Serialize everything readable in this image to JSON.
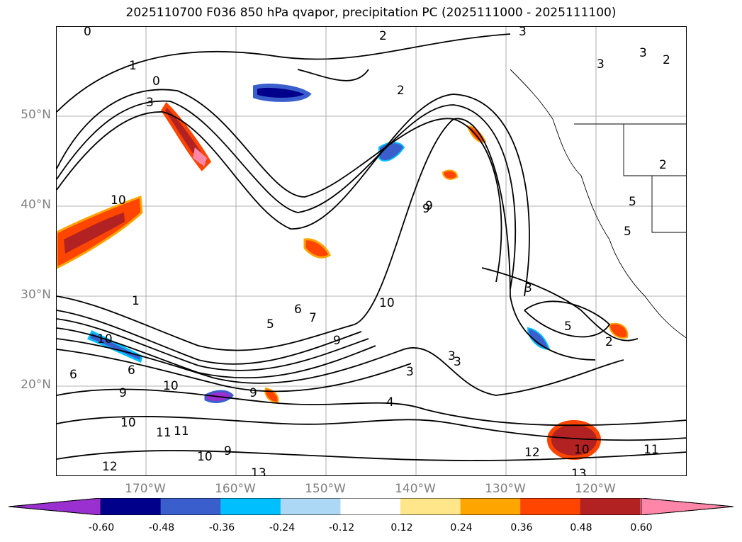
{
  "title": "2025110700 F036 850 hPa qvapor, precipitation PC (2025111000 - 2025111100)",
  "map": {
    "lat_labels": [
      "50°N",
      "40°N",
      "30°N",
      "20°N"
    ],
    "lon_labels": [
      "170°W",
      "160°W",
      "150°W",
      "140°W",
      "130°W",
      "120°W"
    ],
    "extent": {
      "lon": [
        -180,
        -110
      ],
      "lat": [
        10,
        60
      ]
    },
    "gridlines": true,
    "contour_labels": [
      "0",
      "1",
      "0",
      "3",
      "2",
      "2",
      "3",
      "3",
      "2",
      "3",
      "10",
      "1",
      "6",
      "5",
      "7",
      "9",
      "10",
      "3",
      "3",
      "5",
      "2",
      "5",
      "9",
      "10",
      "10",
      "11",
      "6",
      "9",
      "10",
      "12",
      "10",
      "9",
      "11",
      "9",
      "6",
      "3",
      "3",
      "2",
      "4",
      "5",
      "13",
      "12",
      "10",
      "11",
      "13",
      "9"
    ]
  },
  "colorbar": {
    "tick_labels": [
      "-0.60",
      "-0.48",
      "-0.36",
      "-0.24",
      "-0.12",
      "0.12",
      "0.24",
      "0.36",
      "0.48",
      "0.60"
    ],
    "colors": [
      "#9b30d0",
      "#00008b",
      "#3a5fcd",
      "#00bfff",
      "#add8f5",
      "#ffffff",
      "#ffe68a",
      "#ffa500",
      "#ff4500",
      "#b22222",
      "#ff86a8",
      "#ff86a8"
    ],
    "extend": "both"
  }
}
